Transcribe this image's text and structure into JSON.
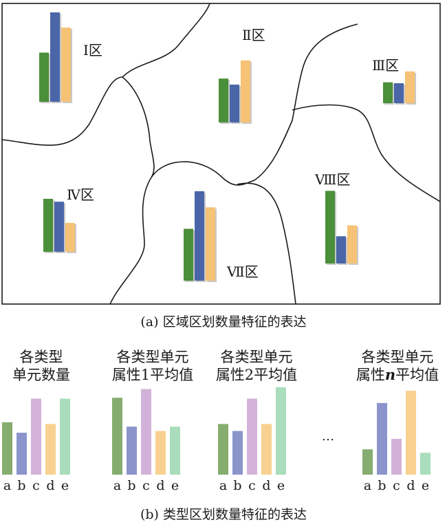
{
  "colors": {
    "green": "#4a8f3a",
    "blue": "#4a66a8",
    "orange": "#f6c276",
    "bar_b_green": "#86ad70",
    "bar_b_blue": "#8b95cb",
    "bar_b_purple": "#d3b2da",
    "bar_b_orange": "#f8d190",
    "bar_b_mint": "#a9ddbb"
  },
  "part_a": {
    "caption": "(a) 区域区划数量特征的表达",
    "regions": [
      {
        "label": "Ⅰ区",
        "values": [
          0.55,
          1.0,
          0.83
        ]
      },
      {
        "label": "Ⅱ区",
        "values": [
          0.58,
          0.5,
          0.82
        ]
      },
      {
        "label": "Ⅲ区",
        "values": [
          0.23,
          0.22,
          0.35
        ]
      },
      {
        "label": "Ⅳ区",
        "values": [
          0.55,
          0.52,
          0.3
        ]
      },
      {
        "label": "Ⅶ区",
        "values": [
          0.58,
          1.0,
          0.82
        ]
      },
      {
        "label": "Ⅷ区",
        "values": [
          0.8,
          0.3,
          0.42
        ]
      }
    ]
  },
  "part_b": {
    "caption": "(b) 类型区划数量特征的表达",
    "ellipsis": "…",
    "categories": [
      "a",
      "b",
      "c",
      "d",
      "e"
    ],
    "groups": [
      {
        "title_lines": [
          "各类型",
          "单元数量"
        ],
        "values": [
          0.6,
          0.48,
          0.87,
          0.58,
          0.87
        ]
      },
      {
        "title_lines": [
          "各类型单元",
          "属性1平均值"
        ],
        "values": [
          0.88,
          0.55,
          0.98,
          0.5,
          0.55
        ]
      },
      {
        "title_lines": [
          "各类型单元",
          "属性2平均值"
        ],
        "values": [
          0.58,
          0.5,
          0.87,
          0.58,
          1.0
        ]
      },
      {
        "title_lines": [
          "各类型单元",
          "属性",
          "n",
          "平均值"
        ],
        "values": [
          0.29,
          0.82,
          0.41,
          0.96,
          0.25
        ]
      }
    ]
  }
}
